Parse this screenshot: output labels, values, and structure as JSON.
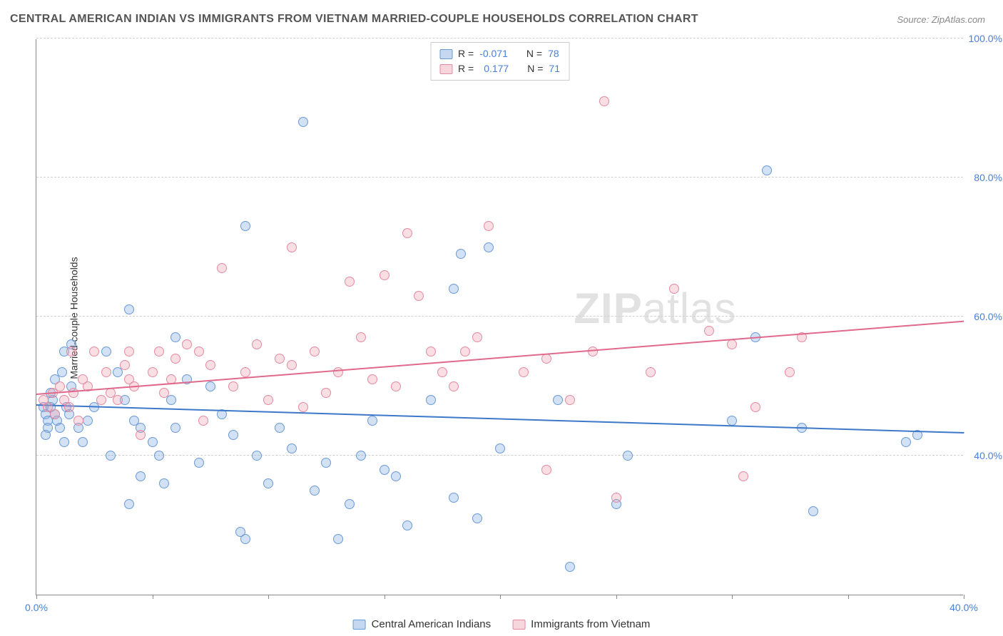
{
  "title": "CENTRAL AMERICAN INDIAN VS IMMIGRANTS FROM VIETNAM MARRIED-COUPLE HOUSEHOLDS CORRELATION CHART",
  "source": "Source: ZipAtlas.com",
  "ylabel": "Married-couple Households",
  "watermark_prefix": "ZIP",
  "watermark_suffix": "atlas",
  "chart": {
    "type": "scatter",
    "xlim": [
      0,
      40
    ],
    "ylim": [
      20,
      100
    ],
    "x_ticks": [
      0,
      5,
      10,
      15,
      20,
      25,
      30,
      35,
      40
    ],
    "y_ticks": [
      40,
      60,
      80,
      100
    ],
    "x_tick_labels": {
      "0": "0.0%",
      "40": "40.0%"
    },
    "y_tick_labels": {
      "40": "40.0%",
      "60": "60.0%",
      "80": "80.0%",
      "100": "100.0%"
    },
    "grid_color": "#d0d0d0",
    "background_color": "#ffffff",
    "axis_color": "#888888",
    "tick_label_color": "#4a7fd8",
    "marker_radius": 7,
    "series": [
      {
        "name": "Central American Indians",
        "color_fill": "rgba(127,168,221,0.35)",
        "color_stroke": "#6a9ad4",
        "trend_color": "#3d78c9",
        "R": "-0.071",
        "N": "78",
        "trend": {
          "y_at_x0": 47.5,
          "y_at_x40": 43.5
        },
        "points": [
          [
            0.3,
            47
          ],
          [
            0.4,
            46
          ],
          [
            0.5,
            45
          ],
          [
            0.6,
            47
          ],
          [
            0.5,
            44
          ],
          [
            0.7,
            48
          ],
          [
            0.8,
            46
          ],
          [
            0.9,
            45
          ],
          [
            1.0,
            44
          ],
          [
            0.4,
            43
          ],
          [
            1.2,
            42
          ],
          [
            1.3,
            47
          ],
          [
            1.5,
            50
          ],
          [
            1.2,
            55
          ],
          [
            1.1,
            52
          ],
          [
            1.4,
            46
          ],
          [
            0.6,
            49
          ],
          [
            0.8,
            51
          ],
          [
            1.5,
            56
          ],
          [
            1.8,
            44
          ],
          [
            2.0,
            42
          ],
          [
            2.2,
            45
          ],
          [
            2.5,
            47
          ],
          [
            3.0,
            55
          ],
          [
            3.2,
            40
          ],
          [
            3.5,
            52
          ],
          [
            3.8,
            48
          ],
          [
            4.0,
            61
          ],
          [
            4.2,
            45
          ],
          [
            4.5,
            44
          ],
          [
            4.0,
            33
          ],
          [
            4.5,
            37
          ],
          [
            5.0,
            42
          ],
          [
            5.3,
            40
          ],
          [
            5.5,
            36
          ],
          [
            5.8,
            48
          ],
          [
            6.0,
            44
          ],
          [
            6.0,
            57
          ],
          [
            6.5,
            51
          ],
          [
            7.0,
            39
          ],
          [
            7.5,
            50
          ],
          [
            8.0,
            46
          ],
          [
            8.5,
            43
          ],
          [
            9.0,
            28
          ],
          [
            9.5,
            40
          ],
          [
            9.0,
            73
          ],
          [
            10.0,
            36
          ],
          [
            10.5,
            44
          ],
          [
            8.8,
            29
          ],
          [
            11.0,
            41
          ],
          [
            11.5,
            88
          ],
          [
            12.0,
            35
          ],
          [
            12.5,
            39
          ],
          [
            13.0,
            28
          ],
          [
            13.5,
            33
          ],
          [
            14.0,
            40
          ],
          [
            14.5,
            45
          ],
          [
            15.0,
            38
          ],
          [
            15.5,
            37
          ],
          [
            16.0,
            30
          ],
          [
            17.0,
            48
          ],
          [
            18.0,
            64
          ],
          [
            18.3,
            69
          ],
          [
            18.0,
            34
          ],
          [
            19.0,
            31
          ],
          [
            19.5,
            70
          ],
          [
            20.0,
            41
          ],
          [
            22.5,
            48
          ],
          [
            23.0,
            24
          ],
          [
            25.0,
            33
          ],
          [
            25.5,
            40
          ],
          [
            30.0,
            45
          ],
          [
            31.0,
            57
          ],
          [
            31.5,
            81
          ],
          [
            33.0,
            44
          ],
          [
            33.5,
            32
          ],
          [
            37.5,
            42
          ],
          [
            38.0,
            43
          ]
        ]
      },
      {
        "name": "Immigrants from Vietnam",
        "color_fill": "rgba(238,162,178,0.35)",
        "color_stroke": "#e48aa0",
        "trend_color": "#e06a8d",
        "R": "0.177",
        "N": "71",
        "trend": {
          "y_at_x0": 49.0,
          "y_at_x40": 59.5
        },
        "points": [
          [
            0.3,
            48
          ],
          [
            0.5,
            47
          ],
          [
            0.7,
            49
          ],
          [
            0.8,
            46
          ],
          [
            1.0,
            50
          ],
          [
            1.2,
            48
          ],
          [
            1.4,
            47
          ],
          [
            1.5,
            55
          ],
          [
            1.8,
            45
          ],
          [
            1.6,
            49
          ],
          [
            2.0,
            51
          ],
          [
            2.2,
            50
          ],
          [
            2.5,
            55
          ],
          [
            2.8,
            48
          ],
          [
            3.0,
            52
          ],
          [
            3.2,
            49
          ],
          [
            3.5,
            48
          ],
          [
            3.8,
            53
          ],
          [
            4.0,
            51
          ],
          [
            4.0,
            55
          ],
          [
            4.2,
            50
          ],
          [
            4.5,
            43
          ],
          [
            5.0,
            52
          ],
          [
            5.3,
            55
          ],
          [
            5.5,
            49
          ],
          [
            5.8,
            51
          ],
          [
            6.0,
            54
          ],
          [
            6.5,
            56
          ],
          [
            7.0,
            55
          ],
          [
            7.2,
            45
          ],
          [
            7.5,
            53
          ],
          [
            8.0,
            67
          ],
          [
            8.5,
            50
          ],
          [
            9.0,
            52
          ],
          [
            9.5,
            56
          ],
          [
            10.0,
            48
          ],
          [
            10.5,
            54
          ],
          [
            11.0,
            53
          ],
          [
            11.5,
            47
          ],
          [
            11.0,
            70
          ],
          [
            12.0,
            55
          ],
          [
            12.5,
            49
          ],
          [
            13.0,
            52
          ],
          [
            13.5,
            65
          ],
          [
            14.0,
            57
          ],
          [
            14.5,
            51
          ],
          [
            15.0,
            66
          ],
          [
            15.5,
            50
          ],
          [
            16.0,
            72
          ],
          [
            16.5,
            63
          ],
          [
            17.0,
            55
          ],
          [
            17.5,
            52
          ],
          [
            18.0,
            50
          ],
          [
            18.5,
            55
          ],
          [
            19.0,
            57
          ],
          [
            19.5,
            73
          ],
          [
            21.0,
            52
          ],
          [
            22.0,
            54
          ],
          [
            22.0,
            38
          ],
          [
            23.0,
            48
          ],
          [
            24.0,
            55
          ],
          [
            24.5,
            91
          ],
          [
            25.0,
            34
          ],
          [
            26.5,
            52
          ],
          [
            27.5,
            64
          ],
          [
            29.0,
            58
          ],
          [
            30.0,
            56
          ],
          [
            30.5,
            37
          ],
          [
            31.0,
            47
          ],
          [
            32.5,
            52
          ],
          [
            33.0,
            57
          ]
        ]
      }
    ]
  },
  "legend_top": {
    "r_label": "R =",
    "n_label": "N ="
  },
  "legend_bottom": {
    "items": [
      "Central American Indians",
      "Immigrants from Vietnam"
    ]
  }
}
